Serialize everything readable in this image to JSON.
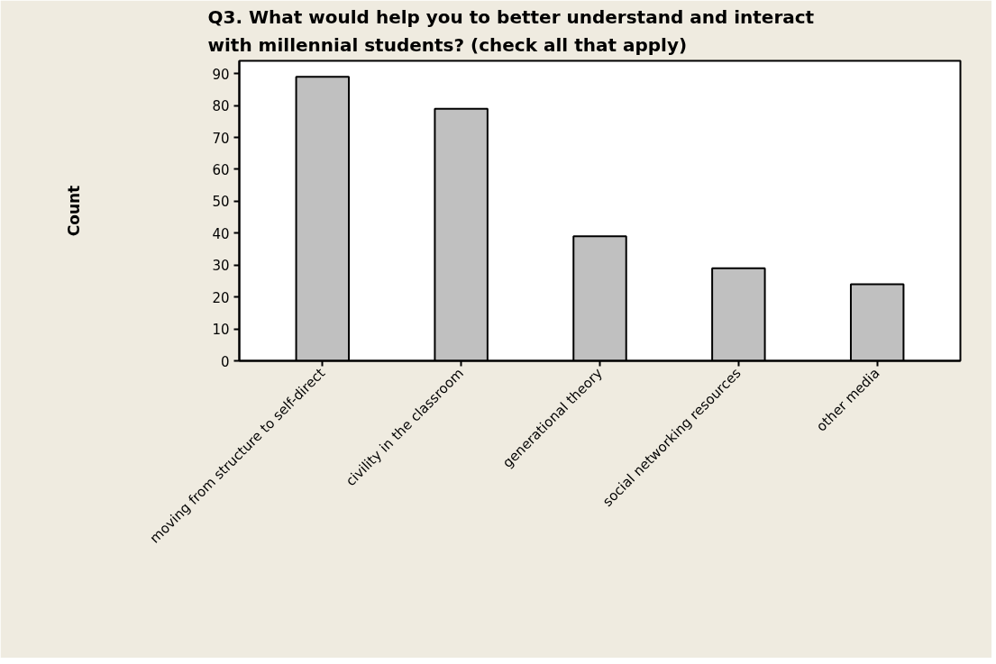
{
  "chart_data": {
    "type": "bar",
    "title": "Q3. What would help you to better understand and interact with millennial students? (check all that apply)",
    "ylabel": "Count",
    "categories": [
      "moving from structure to self-direct",
      "civility in the classroom",
      "generational theory",
      "social networking resources",
      "other media"
    ],
    "values": [
      89,
      79,
      39,
      29,
      24
    ],
    "color": "#c0c0c0",
    "ylim": [
      0,
      94
    ],
    "yticks": [
      0,
      10,
      20,
      30,
      40,
      50,
      60,
      70,
      80,
      90
    ],
    "grid": false
  }
}
